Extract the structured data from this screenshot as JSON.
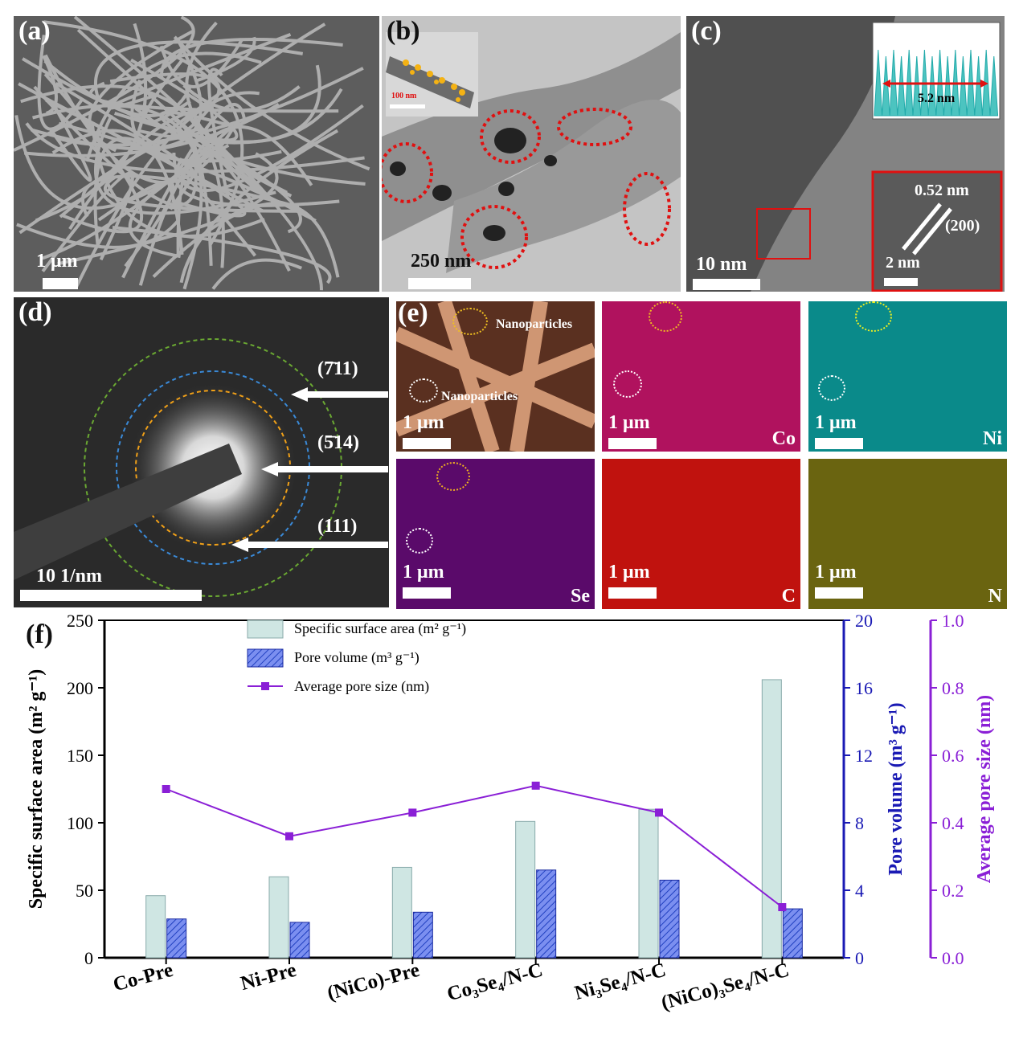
{
  "panels": {
    "a": {
      "label": "(a)",
      "scale": "1 μm"
    },
    "b": {
      "label": "(b)",
      "scale": "250 nm",
      "inset_scale": "100 nm"
    },
    "c": {
      "label": "(c)",
      "scale": "10 nm",
      "fft_distance": "5.2 nm",
      "lattice_spacing": "0.52 nm",
      "plane": "(200)",
      "inset_scale": "2 nm"
    },
    "d": {
      "label": "(d)",
      "scale": "10 1/nm",
      "rings": [
        "(7̄11)",
        "(5̄14)",
        "(111)"
      ]
    },
    "e": {
      "label": "(e)",
      "annotation": "Nanoparticles",
      "maps": [
        {
          "element": "",
          "scale": "1 μm",
          "color": "#b07a5a"
        },
        {
          "element": "Co",
          "scale": "1 μm",
          "color": "#b0125e"
        },
        {
          "element": "Ni",
          "scale": "1 μm",
          "color": "#0a8a8a"
        },
        {
          "element": "Se",
          "scale": "1 μm",
          "color": "#5a0a6a"
        },
        {
          "element": "C",
          "scale": "1 μm",
          "color": "#c0120e"
        },
        {
          "element": "N",
          "scale": "1 μm",
          "color": "#8a8014"
        }
      ]
    }
  },
  "chart_data": {
    "label": "(f)",
    "type": "bar",
    "categories": [
      "Co-Pre",
      "Ni-Pre",
      "(NiCo)-Pre",
      "Co₃Se₄/N-C",
      "Ni₃Se₄/N-C",
      "(NiCo)₃Se₄/N-C"
    ],
    "series": [
      {
        "name": "Specific surface area (m² g⁻¹)",
        "axis": "left",
        "type": "bar",
        "color": "#cfe6e3",
        "values": [
          46,
          60,
          67,
          101,
          110,
          206
        ]
      },
      {
        "name": "Pore volume (m³ g⁻¹)",
        "axis": "right1",
        "type": "bar",
        "color": "#4f6de0",
        "values": [
          2.3,
          2.1,
          2.7,
          5.2,
          4.6,
          2.9
        ]
      },
      {
        "name": "Average pore size (nm)",
        "axis": "right2",
        "type": "line",
        "color": "#8a1fd6",
        "values": [
          0.5,
          0.36,
          0.43,
          0.51,
          0.43,
          0.15
        ]
      }
    ],
    "left_axis": {
      "label": "Specific surface area (m² g⁻¹)",
      "ylim": [
        0,
        250
      ],
      "ticks": [
        0,
        50,
        100,
        150,
        200,
        250
      ],
      "color": "#000000"
    },
    "right1_axis": {
      "label": "Pore volume (m³ g⁻¹)",
      "ylim": [
        0,
        20
      ],
      "ticks": [
        0,
        4,
        8,
        12,
        16,
        20
      ],
      "color": "#1a1ab4"
    },
    "right2_axis": {
      "label": "Average pore size (nm)",
      "ylim": [
        0,
        1.0
      ],
      "ticks": [
        "0.0",
        "0.2",
        "0.4",
        "0.6",
        "0.8",
        "1.0"
      ],
      "color": "#8a1fd6"
    }
  }
}
